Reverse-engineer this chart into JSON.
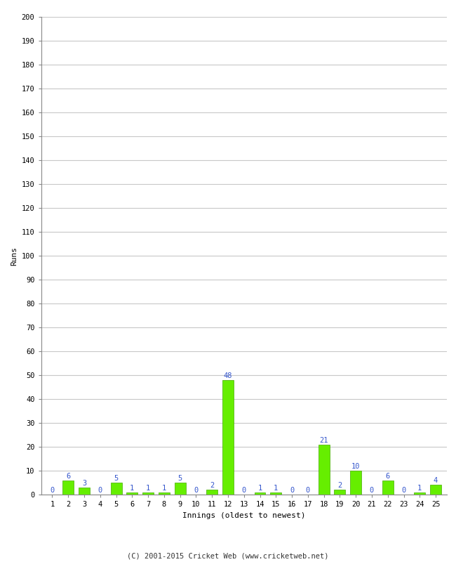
{
  "innings": [
    1,
    2,
    3,
    4,
    5,
    6,
    7,
    8,
    9,
    10,
    11,
    12,
    13,
    14,
    15,
    16,
    17,
    18,
    19,
    20,
    21,
    22,
    23,
    24,
    25
  ],
  "runs": [
    0,
    6,
    3,
    0,
    5,
    1,
    1,
    1,
    5,
    0,
    2,
    48,
    0,
    1,
    1,
    0,
    0,
    21,
    2,
    10,
    0,
    6,
    0,
    1,
    4
  ],
  "bar_color": "#66ee00",
  "bar_edge_color": "#44aa00",
  "label_color": "#3355cc",
  "xlabel": "Innings (oldest to newest)",
  "ylabel": "Runs",
  "ylim": [
    0,
    200
  ],
  "yticks": [
    0,
    10,
    20,
    30,
    40,
    50,
    60,
    70,
    80,
    90,
    100,
    110,
    120,
    130,
    140,
    150,
    160,
    170,
    180,
    190,
    200
  ],
  "footer": "(C) 2001-2015 Cricket Web (www.cricketweb.net)",
  "background_color": "#ffffff",
  "grid_color": "#c8c8c8",
  "label_fontsize": 7.5,
  "axis_label_fontsize": 8,
  "tick_fontsize": 7.5,
  "footer_fontsize": 7.5
}
